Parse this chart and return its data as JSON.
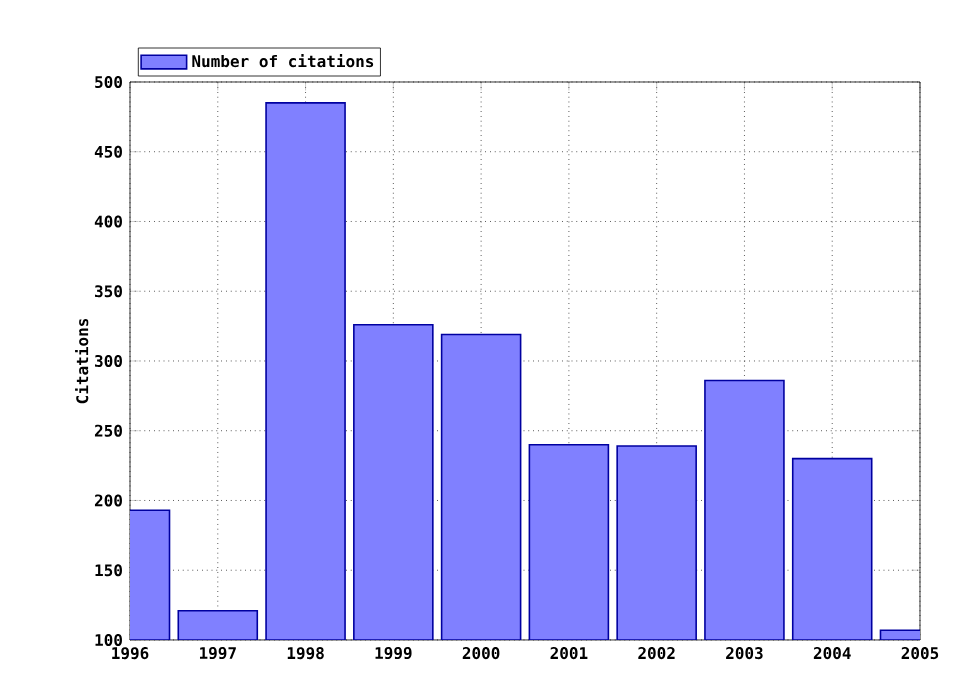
{
  "chart_data": {
    "type": "bar",
    "ylabel": "Citations",
    "x": [
      1996,
      1997,
      1998,
      1999,
      2000,
      2001,
      2002,
      2003,
      2004,
      2005
    ],
    "series": [
      {
        "name": "Number of citations",
        "color": "#8080ff",
        "values": [
          193,
          121,
          485,
          326,
          319,
          240,
          239,
          286,
          230,
          107
        ]
      }
    ],
    "xlim": [
      1996,
      2005
    ],
    "xticks": [
      1996,
      1997,
      1998,
      1999,
      2000,
      2001,
      2002,
      2003,
      2004,
      2005
    ],
    "ylim": [
      100,
      500
    ],
    "yticks": [
      100,
      150,
      200,
      250,
      300,
      350,
      400,
      450,
      500
    ],
    "grid": true,
    "legend": "top left"
  }
}
